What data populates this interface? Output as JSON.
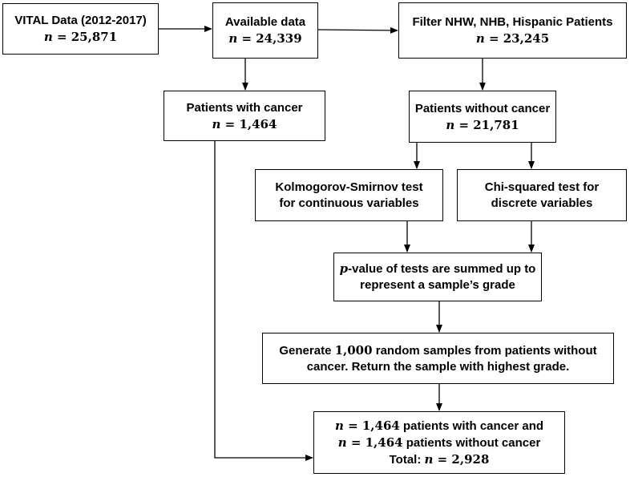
{
  "nodes": {
    "vital": {
      "line1": "VITAL Data (2012-2017)",
      "n_label": "n",
      "n_value": " = 25,871"
    },
    "available": {
      "line1": "Available data",
      "n_label": "n",
      "n_value": " = 24,339"
    },
    "filter": {
      "line1": "Filter NHW, NHB, Hispanic Patients",
      "n_label": "n",
      "n_value": " = 23,245"
    },
    "with_cancer": {
      "line1": "Patients with cancer",
      "n_label": "n",
      "n_value": " = 1,464"
    },
    "without_cancer": {
      "line1": "Patients without cancer",
      "n_label": "n",
      "n_value": " = 21,781"
    },
    "ks_test": {
      "line1": "Kolmogorov-Smirnov test",
      "line2": "for continuous variables"
    },
    "chi_test": {
      "line1": "Chi-squared test for",
      "line2": "discrete variables"
    },
    "pvalue": {
      "p_label": "p",
      "line1_rest": "-value of tests are summed up to",
      "line2": "represent a sample’s grade"
    },
    "generate": {
      "line1_pre": "Generate ",
      "line1_num": "1,000",
      "line1_post": " random samples from patients without",
      "line2": "cancer.  Return the sample with highest grade."
    },
    "result": {
      "line1_n": "n",
      "line1_num": " = 1,464",
      "line1_rest": " patients with cancer and",
      "line2_n": "n",
      "line2_num": " = 1,464",
      "line2_rest": " patients without cancer",
      "line3_pre": "Total: ",
      "line3_n": "n",
      "line3_num": " = 2,928"
    }
  }
}
